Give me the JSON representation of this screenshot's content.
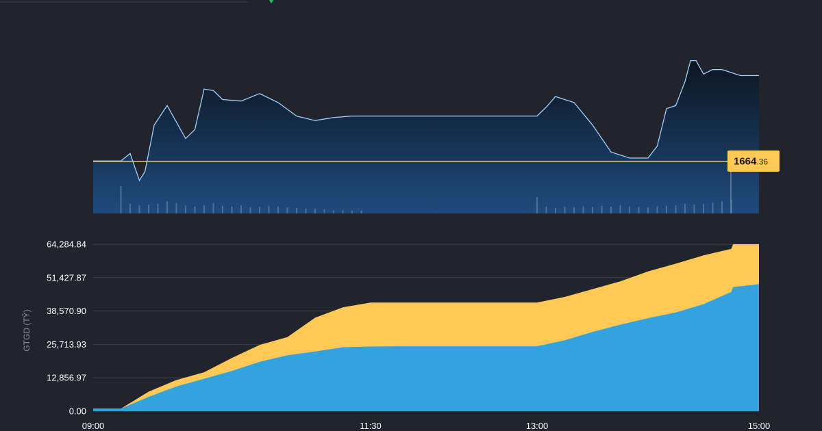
{
  "colors": {
    "background": "#21242c",
    "price_line": "#9fd0ff",
    "reference_line": "#e8c66a",
    "price_tag_bg": "#ffc857",
    "buy_value_area": "#ffc857",
    "sell_value_area": "#34a3dd",
    "gridline": "#3d414b"
  },
  "chart_data": [
    {
      "type": "line",
      "panel": "price",
      "x_range": [
        "09:00",
        "15:00"
      ],
      "reference_value": "1664.36",
      "reference_value_int": "1664",
      "reference_value_dec": ".36",
      "series": [
        {
          "x": [
            "09:00",
            "09:15",
            "09:20",
            "09:25",
            "09:28",
            "09:33",
            "09:40",
            "09:50",
            "09:55",
            "10:00",
            "10:05",
            "10:10",
            "10:20",
            "10:30",
            "10:40",
            "10:50",
            "11:00",
            "11:10",
            "11:20",
            "11:30",
            "11:45",
            "12:00",
            "12:15",
            "12:30",
            "12:45",
            "13:00",
            "13:05",
            "13:10",
            "13:20",
            "13:30",
            "13:40",
            "13:50",
            "14:00",
            "14:05",
            "14:10",
            "14:15",
            "14:20",
            "14:23",
            "14:26",
            "14:30",
            "14:35",
            "14:40",
            "14:50",
            "15:00"
          ],
          "values": [
            1666.5,
            1666.5,
            1667.0,
            1665.2,
            1665.8,
            1668.9,
            1670.2,
            1668.0,
            1668.6,
            1671.3,
            1671.2,
            1670.6,
            1670.5,
            1671.0,
            1670.4,
            1669.5,
            1669.2,
            1669.4,
            1669.5,
            1669.5,
            1669.5,
            1669.5,
            1669.5,
            1669.5,
            1669.5,
            1669.5,
            1670.1,
            1670.8,
            1670.4,
            1668.9,
            1667.1,
            1666.7,
            1666.7,
            1667.5,
            1670.0,
            1670.2,
            1671.8,
            1673.2,
            1673.2,
            1672.3,
            1672.6,
            1672.6,
            1672.2,
            1672.2
          ]
        }
      ],
      "volume": {
        "x": [
          "09:15",
          "09:20",
          "09:25",
          "09:30",
          "09:35",
          "09:40",
          "09:45",
          "09:50",
          "09:55",
          "10:00",
          "10:05",
          "10:10",
          "10:15",
          "10:20",
          "10:25",
          "10:30",
          "10:35",
          "10:40",
          "10:45",
          "10:50",
          "10:55",
          "11:00",
          "11:05",
          "11:10",
          "11:15",
          "11:20",
          "11:25",
          "13:00",
          "13:05",
          "13:10",
          "13:15",
          "13:20",
          "13:25",
          "13:30",
          "13:35",
          "13:40",
          "13:45",
          "13:50",
          "13:55",
          "14:00",
          "14:05",
          "14:10",
          "14:15",
          "14:20",
          "14:25",
          "14:30",
          "14:35",
          "14:40",
          "14:45"
        ],
        "values": [
          1.0,
          0.35,
          0.3,
          0.32,
          0.35,
          0.45,
          0.38,
          0.3,
          0.25,
          0.3,
          0.38,
          0.28,
          0.25,
          0.3,
          0.22,
          0.24,
          0.28,
          0.26,
          0.22,
          0.2,
          0.18,
          0.17,
          0.15,
          0.12,
          0.12,
          0.1,
          0.1,
          0.6,
          0.25,
          0.2,
          0.24,
          0.22,
          0.26,
          0.24,
          0.28,
          0.25,
          0.3,
          0.26,
          0.24,
          0.22,
          0.26,
          0.28,
          0.3,
          0.35,
          0.32,
          0.35,
          0.4,
          0.45,
          0.5
        ]
      }
    },
    {
      "type": "area",
      "panel": "trading-value",
      "ylabel": "GTGD (TỶ)",
      "ylim": [
        0,
        64284.84
      ],
      "y_ticks": [
        "0.00",
        "12,856.97",
        "25,713.93",
        "38,570.90",
        "51,427.87",
        "64,284.84"
      ],
      "x_ticks": [
        "09:00",
        "11:30",
        "13:00",
        "15:00"
      ],
      "grid": true,
      "stacked": true,
      "x": [
        "09:00",
        "09:15",
        "09:30",
        "09:45",
        "10:00",
        "10:15",
        "10:30",
        "10:45",
        "11:00",
        "11:15",
        "11:30",
        "11:45",
        "12:00",
        "12:30",
        "13:00",
        "13:15",
        "13:30",
        "13:45",
        "14:00",
        "14:15",
        "14:30",
        "14:45",
        "14:46",
        "15:00"
      ],
      "series": [
        {
          "name": "lower",
          "values": [
            1000,
            1000,
            5500,
            9500,
            12500,
            15500,
            19000,
            21500,
            23000,
            24600,
            24900,
            25000,
            25000,
            25000,
            25000,
            27300,
            30500,
            33300,
            35800,
            38000,
            41200,
            45900,
            47800,
            48900
          ]
        },
        {
          "name": "total",
          "values": [
            1000,
            1000,
            7500,
            12000,
            15000,
            20500,
            25500,
            28500,
            36000,
            40000,
            41800,
            41800,
            41800,
            41800,
            41800,
            44000,
            47000,
            50000,
            53800,
            56800,
            60000,
            62500,
            64284.84,
            64284.84
          ]
        }
      ]
    }
  ]
}
